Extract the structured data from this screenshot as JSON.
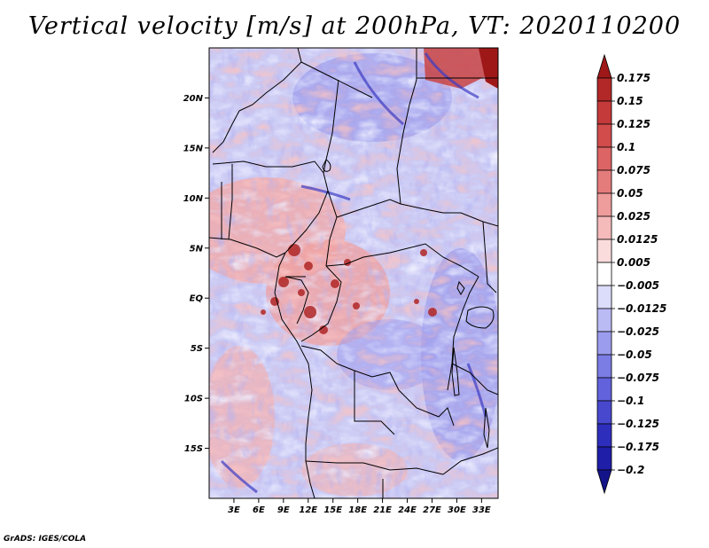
{
  "title": "Vertical velocity [m/s] at 200hPa, VT: 2020110200",
  "credit": "GrADS: IGES/COLA",
  "map": {
    "lon_range": [
      0,
      35
    ],
    "lat_range": [
      -20,
      25
    ],
    "lat_ticks": [
      {
        "value": 20,
        "label": "20N"
      },
      {
        "value": 15,
        "label": "15N"
      },
      {
        "value": 10,
        "label": "10N"
      },
      {
        "value": 5,
        "label": "5N"
      },
      {
        "value": 0,
        "label": "EQ"
      },
      {
        "value": -5,
        "label": "5S"
      },
      {
        "value": -10,
        "label": "10S"
      },
      {
        "value": -15,
        "label": "15S"
      }
    ],
    "lon_ticks": [
      {
        "value": 3,
        "label": "3E"
      },
      {
        "value": 6,
        "label": "6E"
      },
      {
        "value": 9,
        "label": "9E"
      },
      {
        "value": 12,
        "label": "12E"
      },
      {
        "value": 15,
        "label": "15E"
      },
      {
        "value": 18,
        "label": "18E"
      },
      {
        "value": 21,
        "label": "21E"
      },
      {
        "value": 24,
        "label": "24E"
      },
      {
        "value": 27,
        "label": "27E"
      },
      {
        "value": 30,
        "label": "30E"
      },
      {
        "value": 33,
        "label": "33E"
      }
    ]
  },
  "colorbar": {
    "labels": [
      "0.175",
      "0.15",
      "0.125",
      "0.1",
      "0.075",
      "0.05",
      "0.025",
      "0.0125",
      "0.005",
      "−0.005",
      "−0.0125",
      "−0.025",
      "−0.05",
      "−0.075",
      "−0.1",
      "−0.125",
      "−0.175",
      "−0.2"
    ],
    "colors": [
      "#9e1818",
      "#b22828",
      "#c43a3a",
      "#d24c4c",
      "#dd6464",
      "#e57c7c",
      "#ee9c9c",
      "#f5baba",
      "#fbdcdc",
      "#ffffff",
      "#dcdcfb",
      "#babaf5",
      "#9c9cee",
      "#7c7ce5",
      "#6262dd",
      "#4848cf",
      "#2e2ebd",
      "#1e1ea8",
      "#14148a"
    ]
  }
}
